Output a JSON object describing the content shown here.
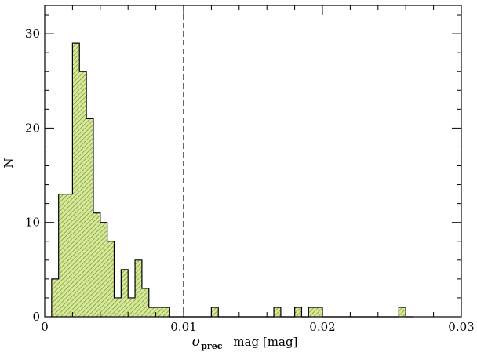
{
  "chart_data": {
    "type": "bar",
    "histogram": true,
    "bin_width": 0.0005,
    "bin_edges": [
      0.0005,
      0.001,
      0.0015,
      0.002,
      0.0025,
      0.003,
      0.0035,
      0.004,
      0.0045,
      0.005,
      0.0055,
      0.006,
      0.0065,
      0.007,
      0.0075,
      0.008,
      0.0085,
      0.009,
      0.0095,
      0.01,
      0.0105,
      0.011,
      0.0115,
      0.012,
      0.0125,
      0.013,
      0.0135,
      0.014,
      0.0145,
      0.015,
      0.0155,
      0.016,
      0.0165,
      0.017,
      0.0175,
      0.018,
      0.0185,
      0.019,
      0.0195,
      0.02,
      0.0205,
      0.021,
      0.0215,
      0.022,
      0.0225,
      0.023,
      0.0235,
      0.024,
      0.0245,
      0.025,
      0.0255,
      0.026,
      0.0265
    ],
    "values": [
      4,
      13,
      13,
      29,
      26,
      21,
      11,
      10,
      8,
      2,
      5,
      2,
      6,
      3,
      1,
      1,
      1,
      0,
      0,
      0,
      0,
      0,
      0,
      1,
      0,
      0,
      0,
      0,
      0,
      0,
      0,
      0,
      1,
      0,
      0,
      1,
      0,
      1,
      1,
      0,
      0,
      0,
      0,
      0,
      0,
      0,
      0,
      0,
      0,
      0,
      1,
      0
    ],
    "xlim": [
      0,
      0.03
    ],
    "ylim": [
      0,
      33
    ],
    "xticks": [
      "0",
      "0.01",
      "0.02",
      "0.03"
    ],
    "xtick_values": [
      0,
      0.01,
      0.02,
      0.03
    ],
    "yticks": [
      "0",
      "10",
      "20",
      "30"
    ],
    "ytick_values": [
      0,
      10,
      20,
      30
    ],
    "reference_line": {
      "x": 0.01,
      "style": "dashed",
      "color": "#000000"
    },
    "fill_color": "#d6e89a",
    "hatch_color": "#6f8c1e",
    "xlabel_symbol": "σ",
    "xlabel_subscript": "prec",
    "xlabel_text": "mag [mag]",
    "ylabel": "N",
    "grid": false
  }
}
